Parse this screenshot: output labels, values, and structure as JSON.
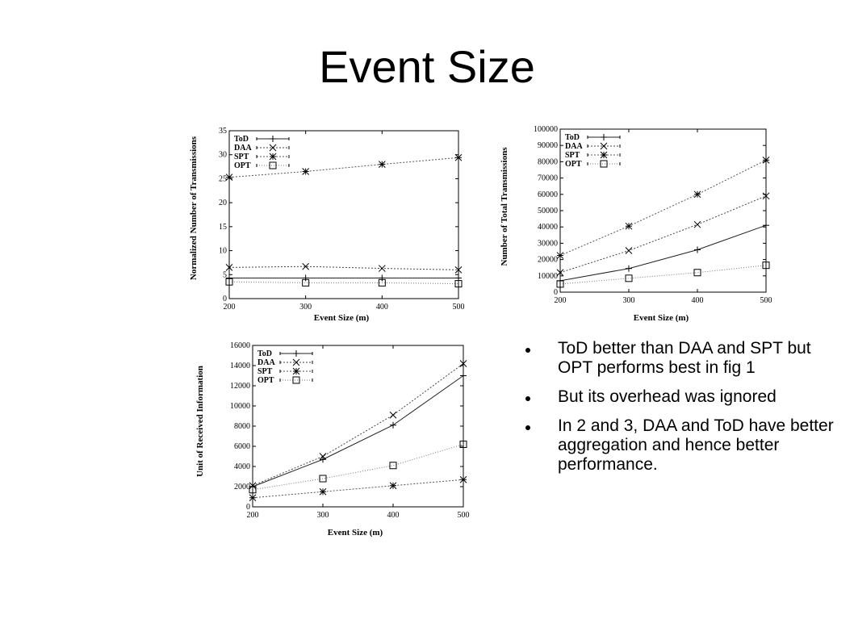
{
  "slide": {
    "title": "Event Size"
  },
  "bullets": [
    "  ToD better than DAA and SPT but OPT performs best in fig 1",
    "  But its overhead was ignored",
    "  In 2 and 3, DAA and ToD have better aggregation and hence better performance."
  ],
  "legend_markers": {
    "ToD": "plus",
    "DAA": "cross",
    "SPT": "star",
    "OPT": "square"
  },
  "chart_data": [
    {
      "type": "line",
      "xlabel": "Event Size (m)",
      "ylabel": "Normalized Number of Transmissions",
      "x": [
        200,
        300,
        400,
        500
      ],
      "xlim": [
        200,
        500
      ],
      "ylim": [
        0,
        35
      ],
      "xticks": [
        200,
        300,
        400,
        500
      ],
      "yticks": [
        0,
        5,
        10,
        15,
        20,
        25,
        30,
        35
      ],
      "legend_position": "top-left",
      "grid": false,
      "series": [
        {
          "name": "ToD",
          "values": [
            4.3,
            4.3,
            4.3,
            4.3
          ]
        },
        {
          "name": "DAA",
          "values": [
            6.5,
            6.7,
            6.3,
            6.0
          ]
        },
        {
          "name": "SPT",
          "values": [
            25.3,
            26.5,
            28.0,
            29.4
          ]
        },
        {
          "name": "OPT",
          "values": [
            3.5,
            3.3,
            3.3,
            3.1
          ]
        }
      ]
    },
    {
      "type": "line",
      "xlabel": "Event Size (m)",
      "ylabel": "Number of Total Transmissions",
      "x": [
        200,
        300,
        400,
        500
      ],
      "xlim": [
        200,
        500
      ],
      "ylim": [
        0,
        100000
      ],
      "xticks": [
        200,
        300,
        400,
        500
      ],
      "yticks": [
        0,
        10000,
        20000,
        30000,
        40000,
        50000,
        60000,
        70000,
        80000,
        90000,
        100000
      ],
      "legend_position": "top-left",
      "grid": false,
      "series": [
        {
          "name": "ToD",
          "values": [
            7000,
            14500,
            26000,
            41000
          ]
        },
        {
          "name": "DAA",
          "values": [
            12000,
            25500,
            41500,
            59000
          ]
        },
        {
          "name": "SPT",
          "values": [
            22500,
            40500,
            60000,
            81000
          ]
        },
        {
          "name": "OPT",
          "values": [
            5000,
            8500,
            12000,
            16500
          ]
        }
      ]
    },
    {
      "type": "line",
      "xlabel": "Event Size (m)",
      "ylabel": "Unit of Received Information",
      "x": [
        200,
        300,
        400,
        500
      ],
      "xlim": [
        200,
        500
      ],
      "ylim": [
        0,
        16000
      ],
      "xticks": [
        200,
        300,
        400,
        500
      ],
      "yticks": [
        0,
        2000,
        4000,
        6000,
        8000,
        10000,
        12000,
        14000,
        16000
      ],
      "legend_position": "top-left",
      "grid": false,
      "series": [
        {
          "name": "ToD",
          "values": [
            2000,
            4700,
            8100,
            13000
          ]
        },
        {
          "name": "DAA",
          "values": [
            2100,
            5000,
            9100,
            14200
          ]
        },
        {
          "name": "SPT",
          "values": [
            900,
            1500,
            2100,
            2700
          ]
        },
        {
          "name": "OPT",
          "values": [
            1700,
            2800,
            4100,
            6200
          ]
        }
      ]
    }
  ]
}
